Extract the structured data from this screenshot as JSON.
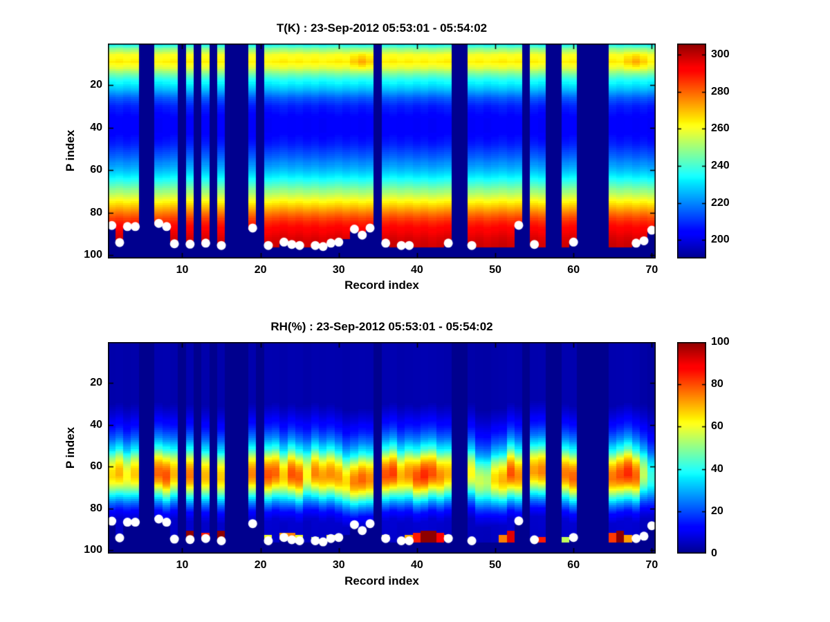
{
  "figure": {
    "background": "#FFFFFF"
  },
  "chart_data": [
    {
      "type": "heatmap",
      "title": "T(K) : 23-Sep-2012 05:53:01 - 05:54:02",
      "xlabel": "Record index",
      "ylabel": "P index",
      "colormap": "jet",
      "clim": [
        190,
        306
      ],
      "x_range": [
        1,
        70
      ],
      "p_range": [
        1,
        101
      ],
      "xticks": [
        10,
        20,
        30,
        40,
        50,
        60,
        70
      ],
      "yticks": [
        20,
        40,
        60,
        80,
        100
      ],
      "colorbar_ticks": [
        200,
        220,
        240,
        260,
        280,
        300
      ],
      "missing_records": [
        5,
        6,
        10,
        12,
        14,
        16,
        17,
        18,
        20,
        35,
        45,
        46,
        54,
        57,
        58,
        61,
        62,
        63,
        64
      ],
      "profile_p": [
        1,
        3,
        6,
        9,
        12,
        15,
        18,
        22,
        26,
        30,
        36,
        42,
        48,
        54,
        60,
        64,
        68,
        72,
        76,
        80,
        84,
        88,
        92,
        96,
        101
      ],
      "profile_values": [
        233,
        247,
        260,
        264,
        257,
        245,
        235,
        226,
        215,
        208,
        203,
        203,
        208,
        216,
        226,
        234,
        244,
        255,
        266,
        277,
        287,
        293,
        297,
        299,
        300
      ],
      "hot_spots": [
        [
          33,
          9,
          9
        ],
        [
          68,
          9,
          9
        ]
      ],
      "surface_markers": [
        [
          1,
          86
        ],
        [
          2,
          94
        ],
        [
          3,
          86.5
        ],
        [
          4,
          86.5
        ],
        [
          7,
          85
        ],
        [
          8,
          86.5
        ],
        [
          9,
          94.6
        ],
        [
          11,
          94.8
        ],
        [
          13,
          94.3
        ],
        [
          15,
          95.4
        ],
        [
          19,
          87.2
        ],
        [
          21,
          95.4
        ],
        [
          23,
          93.8
        ],
        [
          24,
          94.9
        ],
        [
          25,
          95.4
        ],
        [
          27,
          95.4
        ],
        [
          28,
          95.9
        ],
        [
          29,
          94.3
        ],
        [
          30,
          93.8
        ],
        [
          32,
          87.7
        ],
        [
          33,
          90.5
        ],
        [
          34,
          87.2
        ],
        [
          36,
          94.3
        ],
        [
          38,
          95.4
        ],
        [
          39,
          95.4
        ],
        [
          44,
          94.3
        ],
        [
          47,
          95.4
        ],
        [
          53,
          85.9
        ],
        [
          55,
          94.9
        ],
        [
          60,
          93.8
        ],
        [
          68,
          94.3
        ],
        [
          69,
          93.2
        ],
        [
          70,
          88.2
        ]
      ],
      "surface_default_p": 96.3,
      "surface_exceptions": [
        [
          31,
          92.5
        ]
      ],
      "marker_color": "#FFFFFF",
      "missing_color": "#00008F"
    },
    {
      "type": "heatmap",
      "title": "RH(%) : 23-Sep-2012 05:53:01 - 05:54:02",
      "xlabel": "Record index",
      "ylabel": "P index",
      "colormap": "jet",
      "clim": [
        0,
        100
      ],
      "x_range": [
        1,
        70
      ],
      "p_range": [
        1,
        101
      ],
      "xticks": [
        10,
        20,
        30,
        40,
        50,
        60,
        70
      ],
      "yticks": [
        20,
        40,
        60,
        80,
        100
      ],
      "colorbar_ticks": [
        0,
        20,
        40,
        60,
        80,
        100
      ],
      "missing_records": [
        5,
        6,
        10,
        12,
        14,
        16,
        17,
        18,
        20,
        35,
        45,
        46,
        54,
        57,
        58,
        61,
        62,
        63,
        64
      ],
      "profile_p": [
        1,
        30,
        36,
        42,
        47,
        52,
        56,
        59,
        62,
        65,
        68,
        71,
        74,
        78,
        82,
        86,
        101
      ],
      "profile_values": [
        3,
        3,
        8,
        15,
        24,
        38,
        55,
        65,
        71,
        72,
        66,
        54,
        40,
        24,
        12,
        6,
        5
      ],
      "base_peak": 72,
      "record_peaks": [
        [
          1,
          66
        ],
        [
          2,
          70
        ],
        [
          3,
          62
        ],
        [
          4,
          68
        ],
        [
          7,
          78
        ],
        [
          8,
          80
        ],
        [
          9,
          70
        ],
        [
          11,
          76
        ],
        [
          13,
          70
        ],
        [
          15,
          68
        ],
        [
          19,
          75
        ],
        [
          21,
          80
        ],
        [
          22,
          78
        ],
        [
          23,
          68
        ],
        [
          24,
          80
        ],
        [
          25,
          78
        ],
        [
          26,
          62
        ],
        [
          27,
          75
        ],
        [
          28,
          72
        ],
        [
          29,
          74
        ],
        [
          30,
          72
        ],
        [
          31,
          66
        ],
        [
          32,
          75
        ],
        [
          33,
          78
        ],
        [
          34,
          74
        ],
        [
          36,
          80
        ],
        [
          37,
          82
        ],
        [
          38,
          70
        ],
        [
          39,
          74
        ],
        [
          40,
          80
        ],
        [
          41,
          84
        ],
        [
          42,
          80
        ],
        [
          43,
          74
        ],
        [
          44,
          70
        ],
        [
          47,
          62
        ],
        [
          48,
          56
        ],
        [
          49,
          54
        ],
        [
          50,
          66
        ],
        [
          51,
          70
        ],
        [
          52,
          80
        ],
        [
          53,
          74
        ],
        [
          55,
          72
        ],
        [
          56,
          75
        ],
        [
          59,
          76
        ],
        [
          60,
          78
        ],
        [
          65,
          76
        ],
        [
          66,
          80
        ],
        [
          67,
          84
        ],
        [
          68,
          78
        ],
        [
          69,
          55
        ],
        [
          70,
          42
        ]
      ],
      "band_shifts": [
        [
          31,
          -3
        ],
        [
          32,
          -3
        ],
        [
          33,
          -2
        ],
        [
          34,
          -2
        ],
        [
          48,
          -3
        ],
        [
          49,
          -3
        ],
        [
          50,
          -2
        ],
        [
          51,
          -2
        ],
        [
          55,
          2
        ],
        [
          56,
          2
        ]
      ],
      "surface_spikes": [
        [
          11,
          91,
          100
        ],
        [
          13,
          92,
          85
        ],
        [
          15,
          91,
          100
        ],
        [
          21,
          93,
          60
        ],
        [
          23,
          92.5,
          72
        ],
        [
          24,
          92.5,
          75
        ],
        [
          25,
          93.5,
          60
        ],
        [
          27,
          94,
          55
        ],
        [
          29,
          93,
          62
        ],
        [
          30,
          93,
          65
        ],
        [
          33,
          90.5,
          100
        ],
        [
          36,
          93.5,
          58
        ],
        [
          39,
          93,
          70
        ],
        [
          40,
          92,
          85
        ],
        [
          41,
          91,
          100
        ],
        [
          42,
          91,
          100
        ],
        [
          43,
          92,
          88
        ],
        [
          44,
          93.5,
          60
        ],
        [
          51,
          93,
          75
        ],
        [
          52,
          91.5,
          92
        ],
        [
          56,
          94,
          85
        ],
        [
          59,
          94,
          55
        ],
        [
          60,
          93.5,
          62
        ],
        [
          65,
          92.5,
          82
        ],
        [
          66,
          91,
          100
        ],
        [
          67,
          93,
          72
        ],
        [
          68,
          94,
          58
        ],
        [
          69,
          95,
          70
        ]
      ],
      "surface_markers": [
        [
          1,
          86
        ],
        [
          2,
          94
        ],
        [
          3,
          86.5
        ],
        [
          4,
          86.5
        ],
        [
          7,
          85
        ],
        [
          8,
          86.5
        ],
        [
          9,
          94.6
        ],
        [
          11,
          94.8
        ],
        [
          13,
          94.3
        ],
        [
          15,
          95.4
        ],
        [
          19,
          87.2
        ],
        [
          21,
          95.4
        ],
        [
          23,
          93.8
        ],
        [
          24,
          94.9
        ],
        [
          25,
          95.4
        ],
        [
          27,
          95.4
        ],
        [
          28,
          95.9
        ],
        [
          29,
          94.3
        ],
        [
          30,
          93.8
        ],
        [
          32,
          87.7
        ],
        [
          33,
          90.5
        ],
        [
          34,
          87.2
        ],
        [
          36,
          94.3
        ],
        [
          38,
          95.4
        ],
        [
          39,
          95.4
        ],
        [
          44,
          94.3
        ],
        [
          47,
          95.4
        ],
        [
          53,
          85.9
        ],
        [
          55,
          94.9
        ],
        [
          60,
          93.8
        ],
        [
          68,
          94.3
        ],
        [
          69,
          93.2
        ],
        [
          70,
          88.2
        ]
      ],
      "surface_default_p": 96.3,
      "surface_exceptions": [
        [
          31,
          92.5
        ]
      ],
      "marker_color": "#FFFFFF",
      "missing_color": "#00008F"
    }
  ]
}
